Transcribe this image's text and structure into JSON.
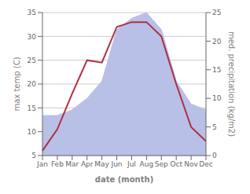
{
  "chart_data": {
    "type": "line",
    "xlabel": "date (month)",
    "ylabel": "max temp (C)",
    "y2label": "med. precipitation (kg/m2)",
    "categories": [
      "Jan",
      "Feb",
      "Mar",
      "Apr",
      "May",
      "Jun",
      "Jul",
      "Aug",
      "Sep",
      "Oct",
      "Nov",
      "Dec"
    ],
    "series": [
      {
        "type": "area",
        "axis": "y2",
        "color": "#b8c0e8",
        "values": [
          7,
          7,
          8,
          10,
          13,
          22,
          24,
          25,
          22,
          13,
          9,
          8
        ]
      },
      {
        "type": "line",
        "axis": "y",
        "color": "#b03040",
        "values": [
          6,
          10.5,
          18,
          25,
          24.5,
          32,
          33,
          33,
          30,
          20,
          11,
          8
        ]
      }
    ],
    "ylim": [
      5,
      35
    ],
    "yticks": [
      5,
      10,
      15,
      20,
      25,
      30,
      35
    ],
    "y2lim": [
      0,
      25
    ],
    "y2ticks": [
      0,
      5,
      10,
      15,
      20,
      25
    ],
    "grid": true
  }
}
